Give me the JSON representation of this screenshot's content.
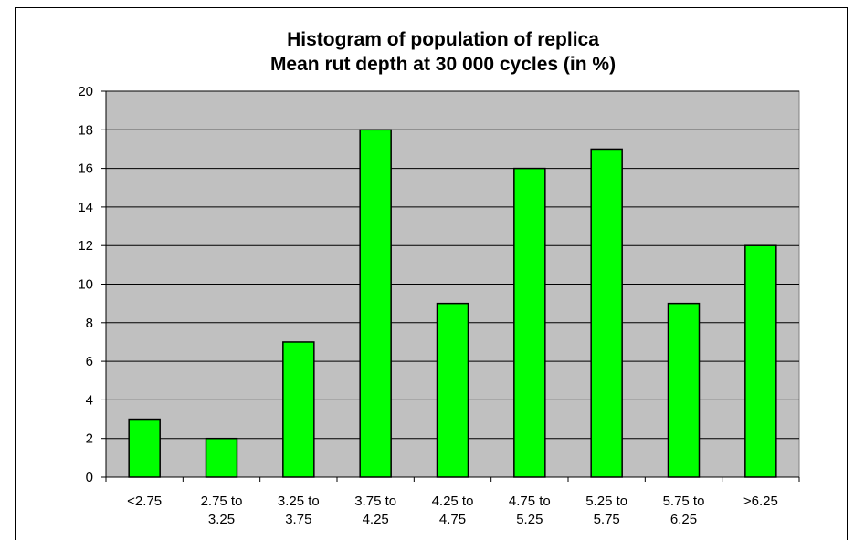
{
  "chart_data": {
    "type": "bar",
    "title_lines": [
      "Histogram of population of replica",
      "Mean rut depth at 30 000 cycles (in %)"
    ],
    "categories": [
      "<2.75",
      "2.75 to 3.25",
      "3.25 to 3.75",
      "3.75 to 4.25",
      "4.25 to 4.75",
      "4.75 to 5.25",
      "5.25 to 5.75",
      "5.75 to 6.25",
      ">6.25"
    ],
    "category_lines": [
      [
        "<2.75"
      ],
      [
        "2.75 to",
        "3.25"
      ],
      [
        "3.25 to",
        "3.75"
      ],
      [
        "3.75 to",
        "4.25"
      ],
      [
        "4.25 to",
        "4.75"
      ],
      [
        "4.75 to",
        "5.25"
      ],
      [
        "5.25 to",
        "5.75"
      ],
      [
        "5.75 to",
        "6.25"
      ],
      [
        ">6.25"
      ]
    ],
    "values": [
      3,
      2,
      7,
      18,
      9,
      16,
      17,
      9,
      12
    ],
    "ylim": [
      0,
      20
    ],
    "yticks": [
      0,
      2,
      4,
      6,
      8,
      10,
      12,
      14,
      16,
      18,
      20
    ],
    "grid": true,
    "legend": "none",
    "colors": {
      "bar_fill": "#00ff00",
      "bar_stroke": "#000000",
      "plot_background": "#c0c0c0",
      "grid": "#000000"
    }
  }
}
